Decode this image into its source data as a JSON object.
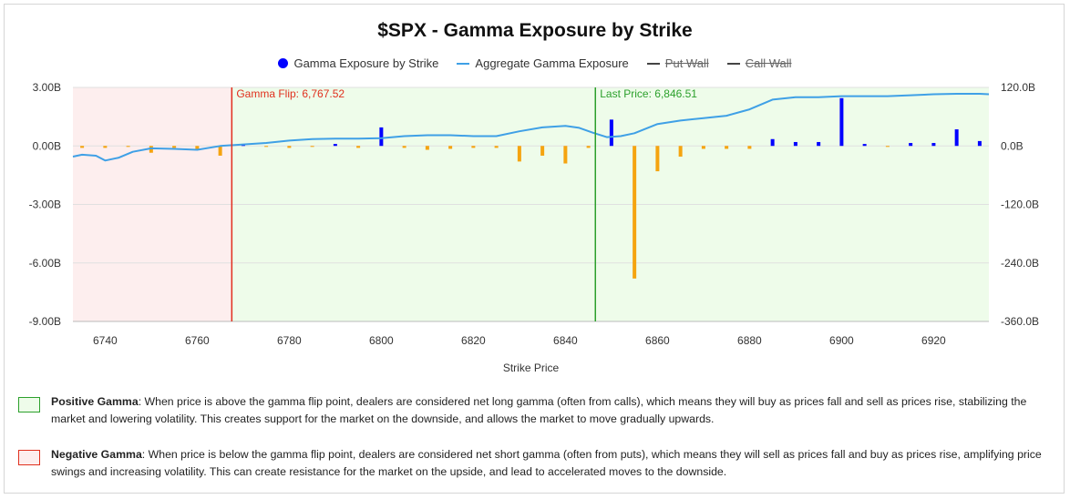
{
  "title": "$SPX - Gamma Exposure by Strike",
  "legend": {
    "bars": "Gamma Exposure by Strike",
    "line": "Aggregate Gamma Exposure",
    "put_wall": "Put Wall",
    "call_wall": "Call Wall"
  },
  "colors": {
    "positive_bar": "#0000ff",
    "negative_bar": "#f5a410",
    "aggregate_line": "#3fa0e6",
    "gamma_flip": "#e0301e",
    "last_price": "#2ca02c",
    "negative_zone": "#fdeeee",
    "positive_zone": "#eefcea"
  },
  "annotations": {
    "gamma_flip": "Gamma Flip: 6,767.52",
    "last_price": "Last Price: 6,846.51"
  },
  "notes": {
    "positive_title": "Positive Gamma",
    "positive_text": ": When price is above the gamma flip point, dealers are considered net long gamma (often from calls), which means they will buy as prices fall and sell as prices rise, stabilizing the market and lowering volatility. This creates support for the market on the downside, and allows the market to move gradually upwards.",
    "negative_title": "Negative Gamma",
    "negative_text": ": When price is below the gamma flip point, dealers are considered net short gamma (often from puts), which means they will sell as prices fall and buy as prices rise, amplifying price swings and increasing volatility. This can create resistance for the market on the upside, and lead to accelerated moves to the downside."
  },
  "chart_data": {
    "type": "bar",
    "title": "$SPX - Gamma Exposure by Strike",
    "xlabel": "Strike Price",
    "xlim": [
      6733,
      6932
    ],
    "x_ticks": [
      6740,
      6760,
      6780,
      6800,
      6820,
      6840,
      6860,
      6880,
      6900,
      6920
    ],
    "ylim_left": [
      -9,
      3
    ],
    "ylim_right": [
      -360,
      120
    ],
    "y_ticks_left": [
      "3.00B",
      "0.00B",
      "-3.00B",
      "-6.00B",
      "-9.00B"
    ],
    "y_ticks_right": [
      "120.0B",
      "0.0B",
      "-120.0B",
      "-240.0B",
      "-360.0B"
    ],
    "gamma_flip": 6767.52,
    "last_price": 6846.51,
    "series": [
      {
        "name": "Gamma Exposure by Strike",
        "axis": "left",
        "unit": "B",
        "strikes": [
          6735,
          6740,
          6745,
          6750,
          6755,
          6760,
          6765,
          6770,
          6775,
          6780,
          6785,
          6790,
          6795,
          6800,
          6805,
          6810,
          6815,
          6820,
          6825,
          6830,
          6835,
          6840,
          6845,
          6850,
          6855,
          6860,
          6865,
          6870,
          6875,
          6880,
          6885,
          6890,
          6895,
          6900,
          6905,
          6910,
          6915,
          6920,
          6925,
          6930
        ],
        "values": [
          -0.1,
          -0.1,
          -0.05,
          -0.35,
          -0.1,
          -0.2,
          -0.5,
          0.05,
          -0.05,
          -0.1,
          -0.05,
          0.1,
          -0.1,
          0.95,
          -0.1,
          -0.2,
          -0.15,
          -0.1,
          -0.1,
          -0.8,
          -0.5,
          -0.9,
          -0.1,
          1.35,
          -6.8,
          -1.3,
          -0.55,
          -0.15,
          -0.15,
          -0.15,
          0.35,
          0.2,
          0.2,
          2.45,
          0.1,
          -0.05,
          0.15,
          0.15,
          0.85,
          0.25
        ]
      },
      {
        "name": "Aggregate Gamma Exposure",
        "axis": "right",
        "unit": "B",
        "x": [
          6733,
          6735,
          6738,
          6740,
          6743,
          6746,
          6750,
          6755,
          6760,
          6765,
          6770,
          6775,
          6780,
          6785,
          6790,
          6795,
          6800,
          6805,
          6810,
          6815,
          6820,
          6825,
          6830,
          6835,
          6840,
          6843,
          6846,
          6849,
          6852,
          6855,
          6860,
          6865,
          6870,
          6875,
          6880,
          6885,
          6890,
          6895,
          6900,
          6905,
          6910,
          6915,
          6920,
          6925,
          6930,
          6932
        ],
        "values": [
          -22,
          -18,
          -20,
          -30,
          -24,
          -12,
          -5,
          -6,
          -8,
          0,
          3,
          6,
          11,
          14,
          15,
          15,
          16,
          20,
          22,
          22,
          20,
          20,
          30,
          38,
          41,
          37,
          27,
          18,
          20,
          26,
          45,
          52,
          57,
          62,
          75,
          95,
          100,
          100,
          102,
          102,
          102,
          104,
          106,
          107,
          107,
          106
        ]
      }
    ],
    "legend_hidden": [
      "Put Wall",
      "Call Wall"
    ]
  }
}
